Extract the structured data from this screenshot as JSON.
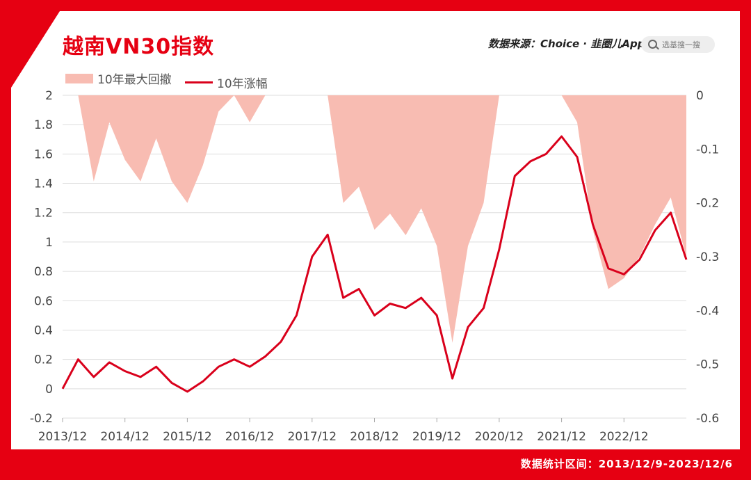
{
  "title": "越南VN30指数",
  "source": "数据来源：Choice · 韭圈儿App",
  "search_placeholder": "选基搜一搜",
  "footer": "数据统计区间：2013/12/9-2023/12/6",
  "colors": {
    "frame": "#e60012",
    "line": "#d9001b",
    "area": "#f8bcb2"
  },
  "chart_data": {
    "type": "line",
    "title": "越南VN30指数",
    "x": [
      "2013/12",
      "2014/3",
      "2014/6",
      "2014/9",
      "2014/12",
      "2015/3",
      "2015/6",
      "2015/9",
      "2015/12",
      "2016/3",
      "2016/6",
      "2016/9",
      "2016/12",
      "2017/3",
      "2017/6",
      "2017/9",
      "2017/12",
      "2018/3",
      "2018/6",
      "2018/9",
      "2018/12",
      "2019/3",
      "2019/6",
      "2019/9",
      "2019/12",
      "2020/3",
      "2020/6",
      "2020/9",
      "2020/12",
      "2021/3",
      "2021/6",
      "2021/9",
      "2021/12",
      "2022/3",
      "2022/6",
      "2022/9",
      "2022/12",
      "2023/3",
      "2023/6",
      "2023/9",
      "2023/12"
    ],
    "x_tick_labels": [
      "2013/12",
      "2014/12",
      "2015/12",
      "2016/12",
      "2017/12",
      "2018/12",
      "2019/12",
      "2020/12",
      "2021/12",
      "2022/12"
    ],
    "series": [
      {
        "name": "10年涨幅",
        "axis": "left",
        "type": "line",
        "values": [
          0.0,
          0.2,
          0.08,
          0.18,
          0.12,
          0.08,
          0.15,
          0.04,
          -0.02,
          0.05,
          0.15,
          0.2,
          0.15,
          0.22,
          0.32,
          0.5,
          0.9,
          1.05,
          0.62,
          0.68,
          0.5,
          0.58,
          0.55,
          0.62,
          0.5,
          0.07,
          0.42,
          0.55,
          0.95,
          1.45,
          1.55,
          1.6,
          1.72,
          1.58,
          1.12,
          0.82,
          0.78,
          0.88,
          1.08,
          1.2,
          0.88
        ]
      },
      {
        "name": "10年最大回撤",
        "axis": "right",
        "type": "area",
        "values": [
          0.0,
          0.0,
          -0.16,
          -0.05,
          -0.12,
          -0.16,
          -0.08,
          -0.16,
          -0.2,
          -0.13,
          -0.03,
          0.0,
          -0.05,
          0.0,
          0.0,
          0.0,
          0.0,
          0.0,
          -0.2,
          -0.17,
          -0.25,
          -0.22,
          -0.26,
          -0.21,
          -0.28,
          -0.46,
          -0.28,
          -0.2,
          0.0,
          0.0,
          0.0,
          0.0,
          0.0,
          -0.05,
          -0.25,
          -0.36,
          -0.34,
          -0.3,
          -0.24,
          -0.19,
          -0.3
        ]
      }
    ],
    "y_left": {
      "ylim": [
        -0.2,
        2
      ],
      "ticks": [
        "-0.2",
        "0",
        "0.2",
        "0.4",
        "0.6",
        "0.8",
        "1",
        "1.2",
        "1.4",
        "1.6",
        "1.8",
        "2"
      ]
    },
    "y_right": {
      "ylim": [
        -0.6,
        0
      ],
      "ticks": [
        "-0.6",
        "-0.5",
        "-0.4",
        "-0.3",
        "-0.2",
        "-0.1",
        "0"
      ]
    },
    "grid": true,
    "legend": "top-left"
  }
}
